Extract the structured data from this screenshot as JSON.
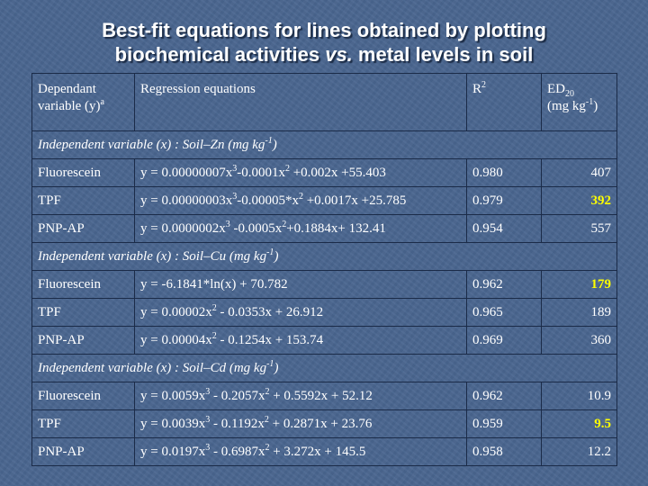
{
  "title": {
    "line1": "Best-fit equations for lines obtained by plotting",
    "line2_pre": "biochemical activities ",
    "line2_vs": "vs.",
    "line2_post": " metal levels in soil"
  },
  "header": {
    "col1_line1": "Dependant",
    "col1_line2": "variable (y)",
    "col1_sup": "a",
    "col2": "Regression equations",
    "col3": "R",
    "col3_sup": "2",
    "col4_line1": "ED",
    "col4_sub": "20",
    "col4_line2_pre": "(mg kg",
    "col4_line2_sup": "-1",
    "col4_line2_post": ")"
  },
  "sections": [
    {
      "label_pre": "Independent variable (x) : Soil–Zn (mg kg",
      "label_sup": "-1",
      "label_post": ")",
      "rows": [
        {
          "variable": "Fluorescein",
          "eq": [
            [
              "y = 0.00000007x",
              ""
            ],
            [
              "3",
              1
            ],
            [
              "-0.0001x",
              ""
            ],
            [
              "2",
              1
            ],
            [
              " +0.002x +55.403",
              ""
            ]
          ],
          "r2": "0.980",
          "ed20": "407",
          "highlight": false
        },
        {
          "variable": "TPF",
          "eq": [
            [
              "y = 0.00000003x",
              ""
            ],
            [
              "3",
              1
            ],
            [
              "-0.00005*x",
              ""
            ],
            [
              "2",
              1
            ],
            [
              " +0.0017x +25.785",
              ""
            ]
          ],
          "r2": "0.979",
          "ed20": "392",
          "highlight": true
        },
        {
          "variable": "PNP-AP",
          "eq": [
            [
              "y = 0.0000002x",
              ""
            ],
            [
              "3",
              1
            ],
            [
              " -0.0005x",
              ""
            ],
            [
              "2",
              1
            ],
            [
              "+0.1884x+ 132.41",
              ""
            ]
          ],
          "r2": "0.954",
          "ed20": "557",
          "highlight": false
        }
      ]
    },
    {
      "label_pre": "Independent variable (x) : Soil–Cu (mg kg",
      "label_sup": "-1",
      "label_post": ")",
      "rows": [
        {
          "variable": "Fluorescein",
          "eq": [
            [
              "y = -6.1841*ln(x) + 70.782",
              ""
            ]
          ],
          "r2": "0.962",
          "ed20": "179",
          "highlight": true
        },
        {
          "variable": "TPF",
          "eq": [
            [
              "y = 0.00002x",
              ""
            ],
            [
              "2",
              1
            ],
            [
              " - 0.0353x + 26.912",
              ""
            ]
          ],
          "r2": "0.965",
          "ed20": "189",
          "highlight": false
        },
        {
          "variable": "PNP-AP",
          "eq": [
            [
              "y = 0.00004x",
              ""
            ],
            [
              "2",
              1
            ],
            [
              " - 0.1254x + 153.74",
              ""
            ]
          ],
          "r2": "0.969",
          "ed20": "360",
          "highlight": false
        }
      ]
    },
    {
      "label_pre": "Independent variable (x) : Soil–Cd (mg kg",
      "label_sup": "-1",
      "label_post": ")",
      "rows": [
        {
          "variable": "Fluorescein",
          "eq": [
            [
              "y = 0.0059x",
              ""
            ],
            [
              "3",
              1
            ],
            [
              " - 0.2057x",
              ""
            ],
            [
              "2",
              1
            ],
            [
              " + 0.5592x + 52.12",
              ""
            ]
          ],
          "r2": "0.962",
          "ed20": "10.9",
          "highlight": false
        },
        {
          "variable": "TPF",
          "eq": [
            [
              "y = 0.0039x",
              ""
            ],
            [
              "3",
              1
            ],
            [
              " - 0.1192x",
              ""
            ],
            [
              "2",
              1
            ],
            [
              " + 0.2871x + 23.76",
              ""
            ]
          ],
          "r2": "0.959",
          "ed20": "9.5",
          "highlight": true
        },
        {
          "variable": "PNP-AP",
          "eq": [
            [
              "y = 0.0197x",
              ""
            ],
            [
              "3",
              1
            ],
            [
              " - 0.6987x",
              ""
            ],
            [
              "2",
              1
            ],
            [
              " + 3.272x + 145.5",
              ""
            ]
          ],
          "r2": "0.958",
          "ed20": "12.2",
          "highlight": false
        }
      ]
    }
  ],
  "colors": {
    "background": "#4a6690",
    "text": "#ffffff",
    "highlight": "#ffff00",
    "grid": "#1b2b48"
  }
}
